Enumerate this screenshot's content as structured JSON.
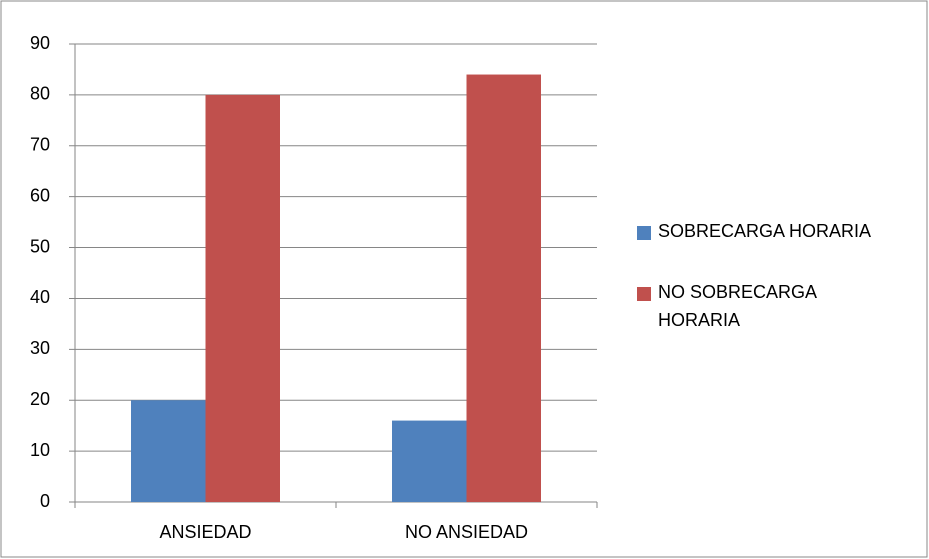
{
  "chart_data": {
    "type": "bar",
    "categories": [
      "ANSIEDAD",
      "NO ANSIEDAD"
    ],
    "series": [
      {
        "name": "SOBRECARGA HORARIA",
        "color": "#4f81bd",
        "values": [
          20,
          16
        ]
      },
      {
        "name": "NO SOBRECARGA HORARIA",
        "color": "#c0504d",
        "values": [
          80,
          84
        ]
      }
    ],
    "ylim": [
      0,
      90
    ],
    "yticks": [
      0,
      10,
      20,
      30,
      40,
      50,
      60,
      70,
      80,
      90
    ],
    "grid": true,
    "legend": "right"
  }
}
